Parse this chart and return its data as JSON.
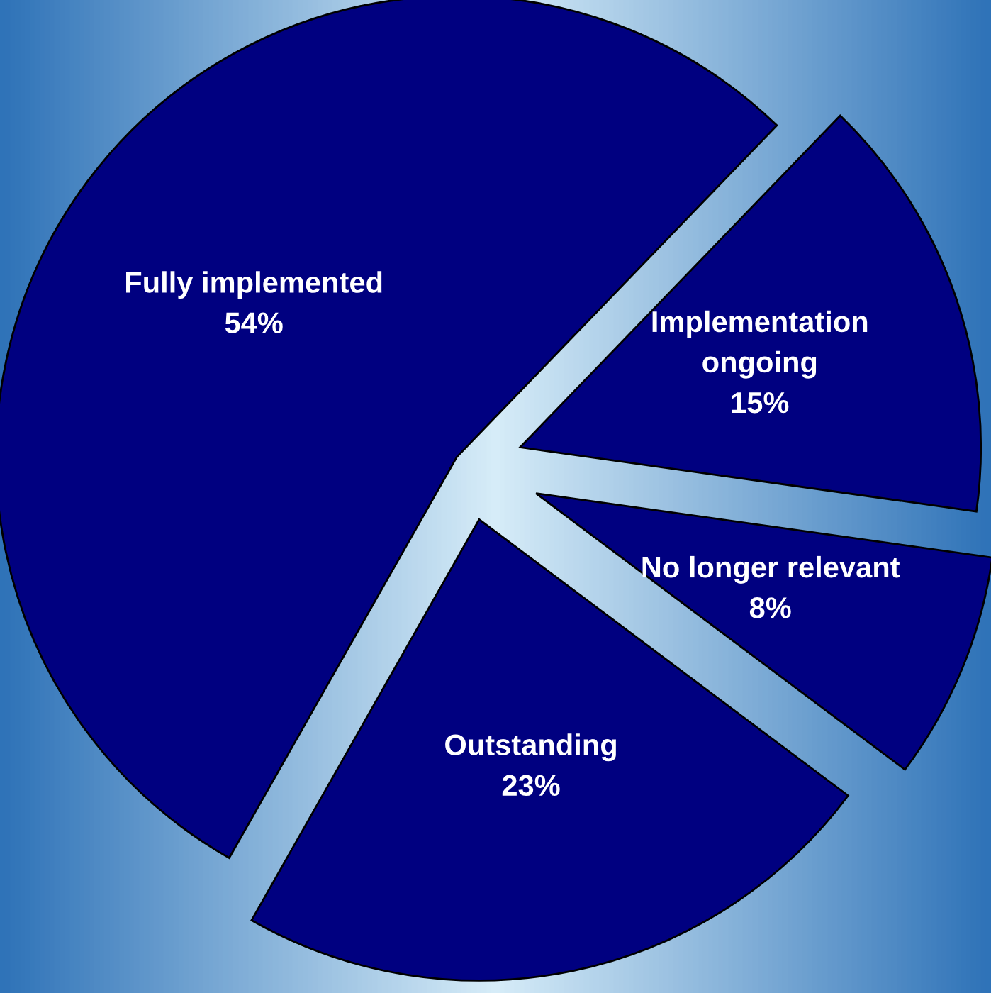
{
  "chart_data": {
    "type": "pie",
    "categories": [
      "Fully implemented",
      "Outstanding",
      "No longer relevant",
      "Implementation ongoing"
    ],
    "values": [
      54,
      23,
      8,
      15
    ],
    "value_labels": [
      "54%",
      "23%",
      "8%",
      "15%"
    ],
    "colors": [
      "#000080",
      "#000080",
      "#000080",
      "#000080"
    ],
    "legend": false
  }
}
